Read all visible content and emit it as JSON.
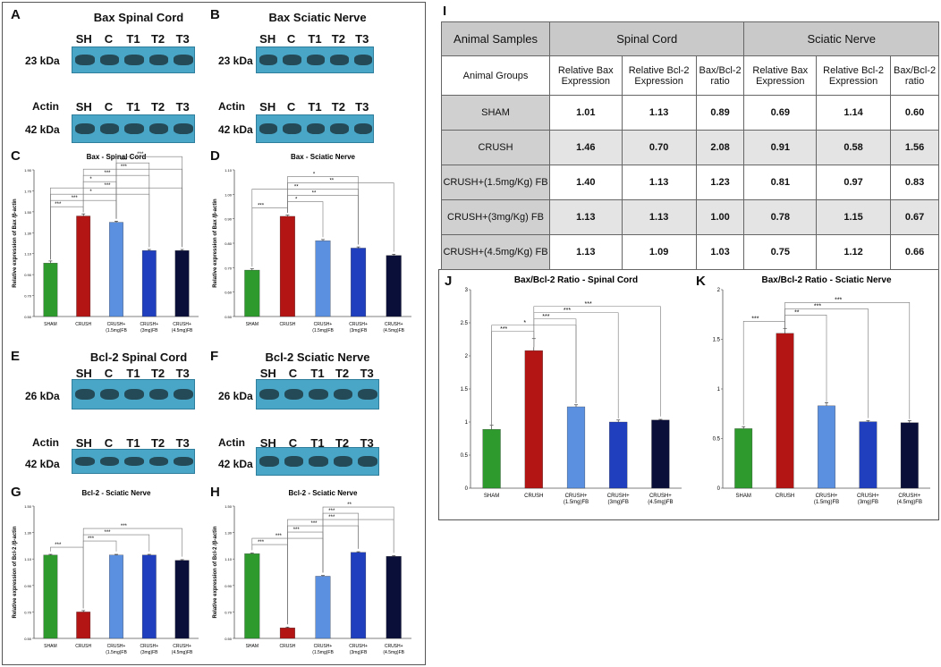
{
  "blots": {
    "A": {
      "label": "A",
      "title": "Bax Spinal Cord",
      "lanes": [
        "SH",
        "C",
        "T1",
        "T2",
        "T3"
      ],
      "kda": "23 kDa",
      "actin_label": "Actin",
      "actin_lanes": [
        "SH",
        "C",
        "T1",
        "T2",
        "T3"
      ],
      "actin_kda": "42 kDa"
    },
    "B": {
      "label": "B",
      "title": "Bax Sciatic Nerve",
      "lanes": [
        "SH",
        "C",
        "T1",
        "T2",
        "T3"
      ],
      "kda": "23 kDa",
      "actin_label": "Actin",
      "actin_lanes": [
        "SH",
        "C",
        "T1",
        "T2",
        "T3"
      ],
      "actin_kda": "42 kDa"
    },
    "E": {
      "label": "E",
      "title": "Bcl-2 Spinal Cord",
      "lanes": [
        "SH",
        "C",
        "T1",
        "T2",
        "T3"
      ],
      "kda": "26 kDa",
      "actin_label": "Actin",
      "actin_lanes": [
        "SH",
        "C",
        "T1",
        "T2",
        "T3"
      ],
      "actin_kda": "42 kDa"
    },
    "F": {
      "label": "F",
      "title": "Bcl-2 Sciatic Nerve",
      "lanes": [
        "SH",
        "C",
        "T1",
        "T2",
        "T3"
      ],
      "kda": "26 kDa",
      "actin_label": "Actin",
      "actin_lanes": [
        "SH",
        "C",
        "T1",
        "T2",
        "T3"
      ],
      "actin_kda": "42 kDa"
    }
  },
  "colors": {
    "sham": "#2e9a2e",
    "crush": "#b31414",
    "fb15": "#5b8fe0",
    "fb3": "#1f3fbf",
    "fb45": "#0a0f3a"
  },
  "chart_data": [
    {
      "panel": "C",
      "type": "bar",
      "title": "Bax - Spinal Cord",
      "ylabel": "Relative expression of Bax /β-actin",
      "categories": [
        "SHAM",
        "CRUSH",
        "CRUSH+\n(1.5mg)FB",
        "CRUSH+\n(3mg)FB",
        "CRUSH+\n(4.5mg)FB"
      ],
      "values": [
        1.01,
        1.46,
        1.4,
        1.13,
        1.13
      ],
      "errors": [
        0.02,
        0.02,
        0.01,
        0.01,
        0.01
      ],
      "ylim": [
        0.5,
        1.9
      ],
      "yticks": [
        "0.50",
        "0.70",
        "0.90",
        "1.10",
        "1.30",
        "1.50",
        "1.70",
        "1.90"
      ],
      "sig": [
        {
          "a": 0,
          "b": 1,
          "s": "***"
        },
        {
          "a": 0,
          "b": 2,
          "s": "***"
        },
        {
          "a": 0,
          "b": 3,
          "s": "*"
        },
        {
          "a": 0,
          "b": 4,
          "s": "***"
        },
        {
          "a": 1,
          "b": 2,
          "s": "*"
        },
        {
          "a": 1,
          "b": 3,
          "s": "***"
        },
        {
          "a": 1,
          "b": 4,
          "s": "***"
        },
        {
          "a": 2,
          "b": 3,
          "s": "***"
        },
        {
          "a": 2,
          "b": 4,
          "s": "***"
        }
      ]
    },
    {
      "panel": "D",
      "type": "bar",
      "title": "Bax - Sciatic Nerve",
      "ylabel": "Relative expression of Bax /β-actin",
      "categories": [
        "SHAM",
        "CRUSH",
        "CRUSH+\n(1.5mg)FB",
        "CRUSH+\n(3mg)FB",
        "CRUSH+\n(4.5mg)FB"
      ],
      "values": [
        0.69,
        0.91,
        0.81,
        0.78,
        0.75
      ],
      "errors": [
        0.005,
        0.005,
        0.005,
        0.005,
        0.005
      ],
      "ylim": [
        0.5,
        1.1
      ],
      "yticks": [
        "0.50",
        "0.60",
        "0.70",
        "0.80",
        "0.90",
        "1.00",
        "1.10"
      ],
      "sig": [
        {
          "a": 0,
          "b": 1,
          "s": "***"
        },
        {
          "a": 1,
          "b": 2,
          "s": "*"
        },
        {
          "a": 1,
          "b": 3,
          "s": "**"
        },
        {
          "a": 0,
          "b": 3,
          "s": "**"
        },
        {
          "a": 1,
          "b": 4,
          "s": "**"
        },
        {
          "a": 1,
          "b": 3,
          "s": "*"
        }
      ]
    },
    {
      "panel": "G",
      "type": "bar",
      "title": "Bcl-2 - Sciatic Nerve",
      "ylabel": "Relative expression of Bcl-2 /β-actin",
      "categories": [
        "SHAM",
        "CRUSH",
        "CRUSH+\n(1.5mg)FB",
        "CRUSH+\n(3mg)FB",
        "CRUSH+\n(4.5mg)FB"
      ],
      "values": [
        1.13,
        0.7,
        1.13,
        1.13,
        1.09
      ],
      "errors": [
        0.005,
        0.01,
        0.005,
        0.005,
        0.005
      ],
      "ylim": [
        0.5,
        1.5
      ],
      "yticks": [
        "0.50",
        "0.70",
        "0.90",
        "1.10",
        "1.30",
        "1.50"
      ],
      "sig": [
        {
          "a": 0,
          "b": 1,
          "s": "***"
        },
        {
          "a": 1,
          "b": 2,
          "s": "***"
        },
        {
          "a": 1,
          "b": 3,
          "s": "***"
        },
        {
          "a": 1,
          "b": 4,
          "s": "***"
        }
      ]
    },
    {
      "panel": "H",
      "type": "bar",
      "title": "Bcl-2 - Sciatic Nerve",
      "ylabel": "Relative expression of Bcl-2 /β-actin",
      "categories": [
        "SHAM",
        "CRUSH",
        "CRUSH+\n(1.5mg)FB",
        "CRUSH+\n(3mg)FB",
        "CRUSH+\n(4.5mg)FB"
      ],
      "values": [
        1.14,
        0.58,
        0.97,
        1.15,
        1.12
      ],
      "errors": [
        0.005,
        0.005,
        0.005,
        0.005,
        0.005
      ],
      "ylim": [
        0.5,
        1.5
      ],
      "yticks": [
        "0.50",
        "0.70",
        "0.90",
        "1.10",
        "1.30",
        "1.50"
      ],
      "sig": [
        {
          "a": 0,
          "b": 1,
          "s": "***"
        },
        {
          "a": 0,
          "b": 2,
          "s": "***"
        },
        {
          "a": 1,
          "b": 2,
          "s": "***"
        },
        {
          "a": 1,
          "b": 3,
          "s": "***"
        },
        {
          "a": 1,
          "b": 4,
          "s": "***"
        },
        {
          "a": 2,
          "b": 3,
          "s": "***"
        },
        {
          "a": 2,
          "b": 4,
          "s": "**"
        }
      ]
    },
    {
      "panel": "J",
      "type": "bar",
      "title": "Bax/Bcl-2 Ratio - Spinal Cord",
      "ylabel": "",
      "categories": [
        "SHAM",
        "CRUSH",
        "CRUSH+\n(1.5mg)FB",
        "CRUSH+\n(3mg)FB",
        "CRUSH+\n(4.5mg)FB"
      ],
      "values": [
        0.89,
        2.08,
        1.23,
        1.0,
        1.03
      ],
      "errors": [
        0.06,
        0.18,
        0.03,
        0.03,
        0.01
      ],
      "ylim": [
        0,
        3
      ],
      "yticks": [
        "0",
        "0.5",
        "1",
        "1.5",
        "2",
        "2.5",
        "3"
      ],
      "sig": [
        {
          "a": 0,
          "b": 1,
          "s": "***"
        },
        {
          "a": 0,
          "b": 2,
          "s": "*"
        },
        {
          "a": 1,
          "b": 2,
          "s": "***"
        },
        {
          "a": 1,
          "b": 3,
          "s": "***"
        },
        {
          "a": 1,
          "b": 4,
          "s": "***"
        }
      ]
    },
    {
      "panel": "K",
      "type": "bar",
      "title": "Bax/Bcl-2 Ratio - Sciatic Nerve",
      "ylabel": "",
      "categories": [
        "SHAM",
        "CRUSH",
        "CRUSH+\n(1.5mg)FB",
        "CRUSH+\n(3mg)FB",
        "CRUSH+\n(4.5mg)FB"
      ],
      "values": [
        0.6,
        1.56,
        0.83,
        0.67,
        0.66
      ],
      "errors": [
        0.02,
        0.05,
        0.03,
        0.01,
        0.02
      ],
      "ylim": [
        0,
        2
      ],
      "yticks": [
        "0",
        "0.5",
        "1",
        "1.5",
        "2"
      ],
      "sig": [
        {
          "a": 0,
          "b": 1,
          "s": "***"
        },
        {
          "a": 1,
          "b": 2,
          "s": "**"
        },
        {
          "a": 1,
          "b": 3,
          "s": "***"
        },
        {
          "a": 1,
          "b": 4,
          "s": "***"
        }
      ]
    }
  ],
  "table": {
    "panel": "I",
    "corner": "Animal Samples",
    "group_headers": [
      "Spinal Cord",
      "Sciatic Nerve"
    ],
    "sub_corner": "Animal Groups",
    "sub_headers": [
      "Relative Bax Expression",
      "Relative Bcl-2 Expression",
      "Bax/Bcl-2 ratio",
      "Relative Bax Expression",
      "Relative Bcl-2 Expression",
      "Bax/Bcl-2 ratio"
    ],
    "rows": [
      {
        "group": "SHAM",
        "values": [
          "1.01",
          "1.13",
          "0.89",
          "0.69",
          "1.14",
          "0.60"
        ]
      },
      {
        "group": "CRUSH",
        "values": [
          "1.46",
          "0.70",
          "2.08",
          "0.91",
          "0.58",
          "1.56"
        ]
      },
      {
        "group": "CRUSH+(1.5mg/Kg) FB",
        "values": [
          "1.40",
          "1.13",
          "1.23",
          "0.81",
          "0.97",
          "0.83"
        ]
      },
      {
        "group": "CRUSH+(3mg/Kg) FB",
        "values": [
          "1.13",
          "1.13",
          "1.00",
          "0.78",
          "1.15",
          "0.67"
        ]
      },
      {
        "group": "CRUSH+(4.5mg/Kg) FB",
        "values": [
          "1.13",
          "1.09",
          "1.03",
          "0.75",
          "1.12",
          "0.66"
        ]
      }
    ]
  }
}
